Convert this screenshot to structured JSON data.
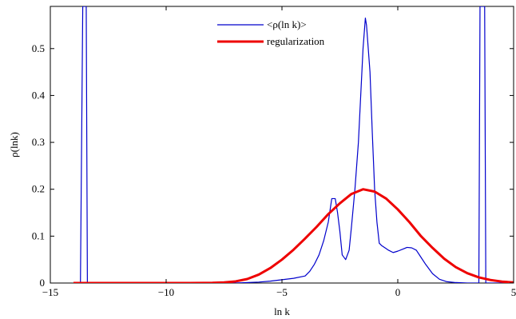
{
  "chart_data": {
    "type": "line",
    "title": "",
    "xlabel": "ln k",
    "ylabel": "ρ(lnk)",
    "xlim": [
      -15,
      5
    ],
    "ylim": [
      0,
      0.59
    ],
    "xticks": [
      -15,
      -10,
      -5,
      0,
      5
    ],
    "xtick_labels": [
      "−15",
      "−10",
      "−5",
      "0",
      "5"
    ],
    "yticks": [
      0,
      0.1,
      0.2,
      0.3,
      0.4,
      0.5
    ],
    "ytick_labels": [
      "0",
      "0.1",
      "0.2",
      "0.3",
      "0.4",
      "0.5"
    ],
    "grid": false,
    "legend_position": "top-center",
    "series": [
      {
        "name": "<ρ(ln k)>",
        "color": "#0000cc",
        "line_width": 1.2,
        "x": [
          -13.8,
          -13.7,
          -13.6,
          -13.55,
          -13.5,
          -13.45,
          -13.4,
          -13.2,
          -12,
          -10,
          -8,
          -7,
          -6,
          -5.5,
          -5,
          -4.5,
          -4,
          -3.8,
          -3.6,
          -3.4,
          -3.2,
          -3.0,
          -2.85,
          -2.7,
          -2.6,
          -2.5,
          -2.4,
          -2.25,
          -2.1,
          -2.0,
          -1.85,
          -1.7,
          -1.6,
          -1.5,
          -1.4,
          -1.35,
          -1.2,
          -1.1,
          -1.0,
          -0.9,
          -0.8,
          -0.7,
          -0.55,
          -0.4,
          -0.2,
          0,
          0.2,
          0.4,
          0.6,
          0.8,
          1.0,
          1.2,
          1.5,
          1.8,
          2.1,
          2.5,
          3.0,
          3.4,
          3.5,
          3.55,
          3.6,
          3.65,
          3.7,
          3.75,
          3.8,
          3.85,
          3.9,
          4.2,
          4.6,
          5.0
        ],
        "y": [
          0,
          0,
          0.59,
          0.59,
          0.59,
          0.59,
          0,
          0,
          0,
          0,
          0,
          0,
          0.002,
          0.004,
          0.007,
          0.01,
          0.015,
          0.025,
          0.04,
          0.06,
          0.09,
          0.13,
          0.18,
          0.18,
          0.15,
          0.11,
          0.06,
          0.05,
          0.07,
          0.12,
          0.2,
          0.3,
          0.4,
          0.5,
          0.565,
          0.55,
          0.45,
          0.32,
          0.2,
          0.13,
          0.085,
          0.08,
          0.075,
          0.07,
          0.065,
          0.068,
          0.072,
          0.076,
          0.075,
          0.07,
          0.055,
          0.04,
          0.02,
          0.008,
          0.003,
          0.001,
          0,
          0,
          0,
          0.59,
          0.59,
          0.59,
          0.59,
          0.59,
          0,
          0,
          0,
          0,
          0,
          0
        ]
      },
      {
        "name": "regularization",
        "color": "#ee0000",
        "line_width": 3,
        "x": [
          -14.0,
          -13.0,
          -12.0,
          -11.0,
          -10.0,
          -9.0,
          -8.0,
          -7.5,
          -7.0,
          -6.5,
          -6.0,
          -5.5,
          -5.0,
          -4.5,
          -4.0,
          -3.5,
          -3.0,
          -2.5,
          -2.0,
          -1.5,
          -1.0,
          -0.5,
          0.0,
          0.5,
          1.0,
          1.5,
          2.0,
          2.5,
          3.0,
          3.5,
          4.0,
          4.5,
          5.0
        ],
        "y": [
          0,
          0,
          0,
          0,
          0,
          0,
          0.0004,
          0.0012,
          0.0035,
          0.0085,
          0.018,
          0.032,
          0.05,
          0.071,
          0.095,
          0.12,
          0.147,
          0.17,
          0.19,
          0.2,
          0.195,
          0.18,
          0.157,
          0.13,
          0.1,
          0.075,
          0.052,
          0.034,
          0.021,
          0.012,
          0.0065,
          0.003,
          0.0012
        ]
      }
    ]
  }
}
